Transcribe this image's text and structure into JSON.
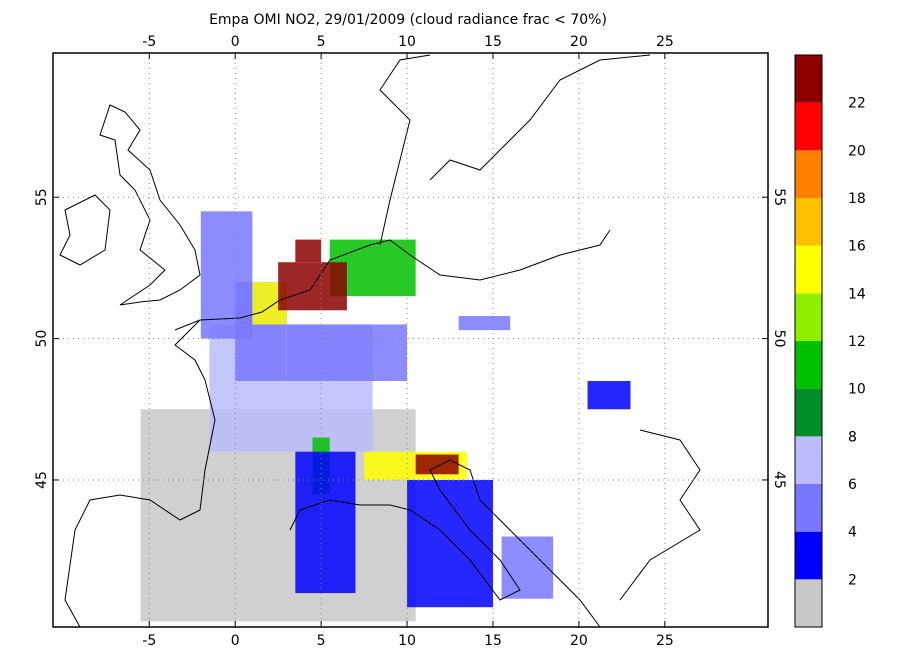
{
  "chart_data": {
    "type": "map",
    "title": "Empa OMI NO2, 29/01/2009 (cloud radiance frac < 70%)",
    "xlim": [
      -10.6,
      31
    ],
    "xticks": [
      -5,
      0,
      5,
      10,
      15,
      20,
      25
    ],
    "ylim": [
      39.8,
      60.1
    ],
    "yticks": [
      45,
      50,
      55
    ],
    "grid": true,
    "colorbar": {
      "clim": [
        0,
        24
      ],
      "ticks": [
        2,
        4,
        6,
        8,
        10,
        12,
        14,
        16,
        18,
        20,
        22
      ],
      "colors": [
        "#c8c8c8",
        "#0000ff",
        "#7878ff",
        "#bcbcff",
        "#008c28",
        "#00c000",
        "#8cf000",
        "#ffff00",
        "#ffc000",
        "#ff8000",
        "#ff0000",
        "#8c0000"
      ]
    },
    "cells": [
      {
        "lon": [
          -5.5,
          10.5
        ],
        "lat": [
          40,
          47.5
        ],
        "value": 1
      },
      {
        "lon": [
          -1.5,
          8
        ],
        "lat": [
          46,
          50.5
        ],
        "value": 7
      },
      {
        "lon": [
          -2,
          1
        ],
        "lat": [
          50,
          54.5
        ],
        "value": 5
      },
      {
        "lon": [
          0,
          3
        ],
        "lat": [
          48.5,
          52
        ],
        "value": 5
      },
      {
        "lon": [
          3,
          10
        ],
        "lat": [
          48.5,
          50.5
        ],
        "value": 5
      },
      {
        "lon": [
          5.5,
          10.5
        ],
        "lat": [
          51.5,
          53.5
        ],
        "value": 11
      },
      {
        "lon": [
          1,
          3
        ],
        "lat": [
          50.5,
          52
        ],
        "value": 15
      },
      {
        "lon": [
          2.5,
          6.5
        ],
        "lat": [
          51,
          52.7
        ],
        "value": 23
      },
      {
        "lon": [
          3.5,
          5
        ],
        "lat": [
          52.7,
          53.5
        ],
        "value": 23
      },
      {
        "lon": [
          4.5,
          5.5
        ],
        "lat": [
          44.5,
          46.5
        ],
        "value": 11
      },
      {
        "lon": [
          7.5,
          13.5
        ],
        "lat": [
          45,
          46
        ],
        "value": 15
      },
      {
        "lon": [
          10.5,
          13
        ],
        "lat": [
          45.2,
          45.9
        ],
        "value": 23
      },
      {
        "lon": [
          3.5,
          7
        ],
        "lat": [
          41,
          46
        ],
        "value": 3
      },
      {
        "lon": [
          10,
          15
        ],
        "lat": [
          40.5,
          45
        ],
        "value": 3
      },
      {
        "lon": [
          15.5,
          18.5
        ],
        "lat": [
          40.8,
          43
        ],
        "value": 5
      },
      {
        "lon": [
          20.5,
          23
        ],
        "lat": [
          47.5,
          48.5
        ],
        "value": 3
      },
      {
        "lon": [
          13,
          16
        ],
        "lat": [
          50.3,
          50.8
        ],
        "value": 5
      }
    ]
  }
}
